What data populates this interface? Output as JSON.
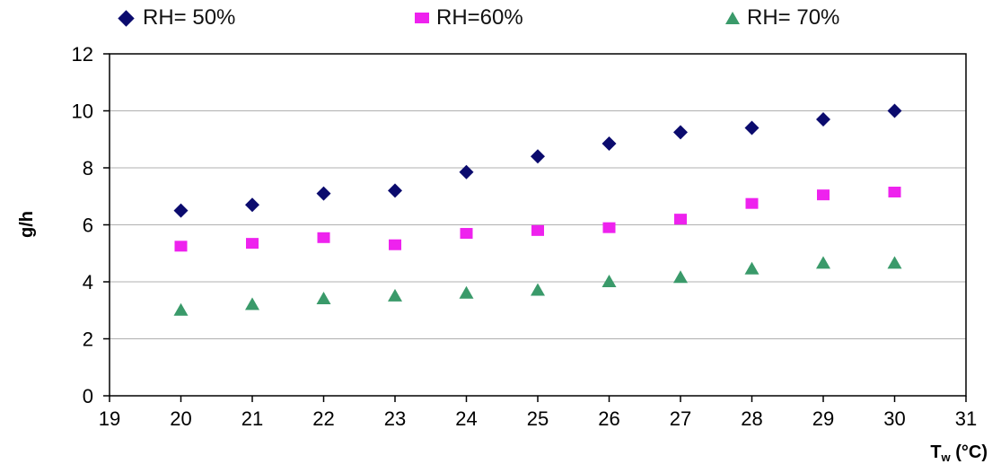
{
  "chart_data": {
    "type": "scatter",
    "xlabel": "Tw (°C)",
    "ylabel": "g/h",
    "xlim": [
      19,
      31
    ],
    "ylim": [
      0,
      12
    ],
    "xticks": [
      19,
      20,
      21,
      22,
      23,
      24,
      25,
      26,
      27,
      28,
      29,
      30,
      31
    ],
    "yticks": [
      0,
      2,
      4,
      6,
      8,
      10,
      12
    ],
    "grid": "horizontal",
    "legend_position": "top",
    "series": [
      {
        "name": "RH= 50%",
        "marker": "diamond",
        "color": "#0b0b6e",
        "x": [
          20,
          21,
          22,
          23,
          24,
          25,
          26,
          27,
          28,
          29,
          30
        ],
        "y": [
          6.5,
          6.7,
          7.1,
          7.2,
          7.85,
          8.4,
          8.85,
          9.25,
          9.4,
          9.7,
          10.0
        ]
      },
      {
        "name": "RH=60%",
        "marker": "square",
        "color": "#ee22ee",
        "x": [
          20,
          21,
          22,
          23,
          24,
          25,
          26,
          27,
          28,
          29,
          30
        ],
        "y": [
          5.25,
          5.35,
          5.55,
          5.3,
          5.7,
          5.8,
          5.9,
          6.2,
          6.75,
          7.05,
          7.15
        ]
      },
      {
        "name": "RH= 70%",
        "marker": "triangle",
        "color": "#3a9a6a",
        "x": [
          20,
          21,
          22,
          23,
          24,
          25,
          26,
          27,
          28,
          29,
          30
        ],
        "y": [
          3.0,
          3.2,
          3.4,
          3.5,
          3.6,
          3.7,
          4.0,
          4.15,
          4.45,
          4.65,
          4.65
        ]
      }
    ]
  }
}
